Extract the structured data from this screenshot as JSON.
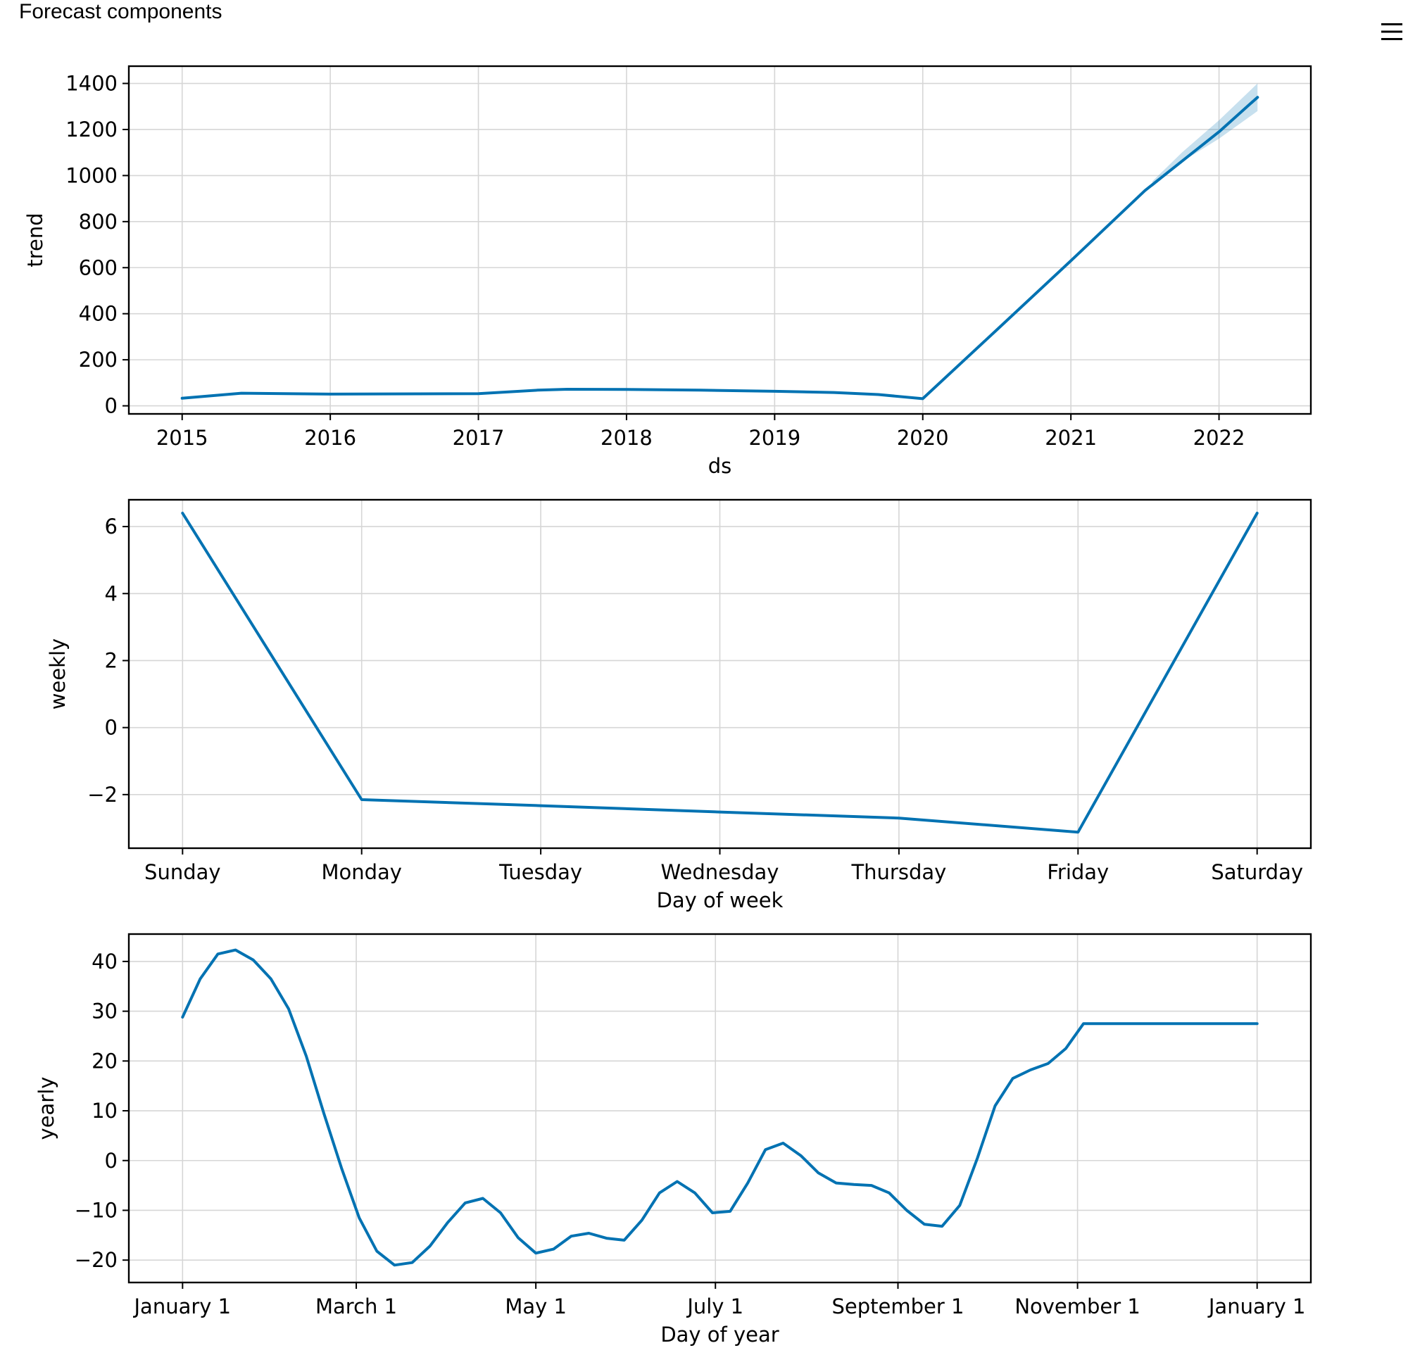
{
  "page": {
    "title": "Forecast components",
    "menu_icon": "hamburger-menu-icon"
  },
  "colors": {
    "series": "#0072b2",
    "band": "#0072b2",
    "grid": "#d6d6d6",
    "axes": "#000000"
  },
  "chart_data": [
    {
      "type": "line",
      "ylabel": "trend",
      "xlabel": "ds",
      "x_tick_labels": [
        "2015",
        "2016",
        "2017",
        "2018",
        "2019",
        "2020",
        "2021",
        "2022"
      ],
      "x_ticks": [
        2015,
        2016,
        2017,
        2018,
        2019,
        2020,
        2021,
        2022
      ],
      "y_ticks": [
        0,
        200,
        400,
        600,
        800,
        1000,
        1200,
        1400
      ],
      "y_tick_labels": [
        "0",
        "200",
        "400",
        "600",
        "800",
        "1000",
        "1200",
        "1400"
      ],
      "xlim": [
        2014.64,
        2022.62
      ],
      "ylim": [
        -35,
        1475
      ],
      "grid": true,
      "series": [
        {
          "x": [
            2015.0,
            2015.4,
            2016.0,
            2017.0,
            2017.4,
            2017.6,
            2018.0,
            2018.5,
            2019.0,
            2019.4,
            2019.7,
            2020.0,
            2020.5,
            2021.0,
            2021.5,
            2022.0,
            2022.26
          ],
          "y": [
            33,
            55,
            51,
            53,
            68,
            72,
            71,
            68,
            63,
            58,
            49,
            31,
            330,
            630,
            935,
            1190,
            1340
          ]
        }
      ],
      "band": {
        "x": [
          2021.55,
          2021.75,
          2022.0,
          2022.26
        ],
        "lower": [
          950,
          1060,
          1160,
          1280
        ],
        "upper": [
          975,
          1100,
          1240,
          1400
        ]
      }
    },
    {
      "type": "line",
      "ylabel": "weekly",
      "xlabel": "Day of week",
      "x_tick_labels": [
        "Sunday",
        "Monday",
        "Tuesday",
        "Wednesday",
        "Thursday",
        "Friday",
        "Saturday"
      ],
      "x_ticks": [
        0,
        1,
        2,
        3,
        4,
        5,
        6
      ],
      "y_ticks": [
        -2,
        0,
        2,
        4,
        6
      ],
      "y_tick_labels": [
        "−2",
        "0",
        "2",
        "4",
        "6"
      ],
      "xlim": [
        -0.3,
        6.3
      ],
      "ylim": [
        -3.6,
        6.8
      ],
      "grid": true,
      "series": [
        {
          "x": [
            0,
            1,
            2,
            3,
            4,
            5,
            6
          ],
          "y": [
            6.4,
            -2.15,
            -2.33,
            -2.52,
            -2.7,
            -3.12,
            6.4
          ]
        }
      ]
    },
    {
      "type": "line",
      "ylabel": "yearly",
      "xlabel": "Day of year",
      "x_tick_labels": [
        "January 1",
        "March 1",
        "May 1",
        "July 1",
        "September 1",
        "November 1",
        "January 1"
      ],
      "x_ticks": [
        0,
        59,
        120,
        181,
        243,
        304,
        365
      ],
      "y_ticks": [
        -20,
        -10,
        0,
        10,
        20,
        30,
        40
      ],
      "y_tick_labels": [
        "−20",
        "−10",
        "0",
        "10",
        "20",
        "30",
        "40"
      ],
      "xlim": [
        -18.25,
        383.25
      ],
      "ylim": [
        -24.5,
        45.5
      ],
      "grid": true,
      "series": [
        {
          "x": [
            0,
            6,
            12,
            18,
            24,
            30,
            36,
            42,
            48,
            54,
            60,
            66,
            72,
            78,
            84,
            90,
            96,
            102,
            108,
            114,
            120,
            126,
            132,
            138,
            144,
            150,
            156,
            162,
            168,
            174,
            180,
            186,
            192,
            198,
            204,
            210,
            216,
            222,
            228,
            234,
            240,
            246,
            252,
            258,
            264,
            270,
            276,
            282,
            288,
            294,
            300,
            306,
            312,
            318,
            324,
            330,
            336,
            342,
            348,
            354,
            360,
            365
          ],
          "y": [
            28.8,
            36.5,
            41.5,
            42.3,
            40.3,
            36.5,
            30.5,
            21.0,
            9.5,
            -1.5,
            -11.5,
            -18.2,
            -21.0,
            -20.5,
            -17.2,
            -12.5,
            -8.5,
            -7.6,
            -10.5,
            -15.5,
            -18.6,
            -17.8,
            -15.2,
            -14.6,
            -15.6,
            -16.0,
            -12.0,
            -6.5,
            -4.2,
            -6.5,
            -10.5,
            -10.2,
            -4.5,
            2.2,
            3.5,
            1.0,
            -2.5,
            -4.5,
            -4.8,
            -5.0,
            -6.5,
            -10.0,
            -12.8,
            -13.2,
            -9.0,
            0.5,
            11.0,
            16.5,
            18.2,
            19.5,
            22.5,
            27.5,
            27.5,
            27.5,
            27.5,
            27.5,
            27.5,
            27.5,
            27.5,
            27.5,
            27.5,
            27.5
          ]
        }
      ]
    }
  ]
}
